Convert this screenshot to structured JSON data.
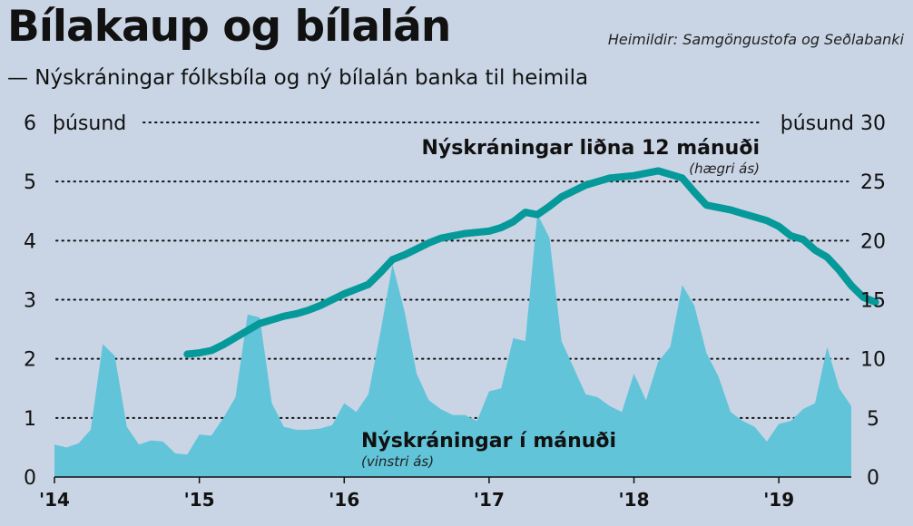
{
  "header": {
    "title": "Bílakaup og bílalán",
    "source": "Heimildir: Samgöngustofa og Seðlabanki",
    "subtitle": "— Nýskráningar fólksbíla og ný bílalán banka til heimila"
  },
  "chart_data": {
    "type": "area+line",
    "left_unit": "þúsund",
    "right_unit": "þúsund",
    "left_axis": {
      "min": 0,
      "max": 6,
      "ticks": [
        0,
        1,
        2,
        3,
        4,
        5,
        6
      ]
    },
    "right_axis": {
      "min": 0,
      "max": 30,
      "ticks": [
        0,
        5,
        10,
        15,
        20,
        25,
        30
      ]
    },
    "x_axis": {
      "start": 2014.0,
      "end": 2019.5,
      "ticks": [
        2014,
        2015,
        2016,
        2017,
        2018,
        2019
      ],
      "tick_labels": [
        "'14",
        "'15",
        "'16",
        "'17",
        "'18",
        "'19"
      ]
    },
    "grid": "dotted",
    "colors": {
      "background": "#c9d5e5",
      "area": "#62c4d9",
      "line": "#05999a"
    },
    "series": [
      {
        "name": "Nýskráningar í mánuði",
        "axis_note": "(vinstri ás)",
        "kind": "area",
        "axis": "left",
        "start": "2014-01",
        "values": [
          0.55,
          0.5,
          0.57,
          0.8,
          2.25,
          2.05,
          0.85,
          0.55,
          0.62,
          0.6,
          0.4,
          0.38,
          0.72,
          0.7,
          1.0,
          1.35,
          2.75,
          2.7,
          1.25,
          0.85,
          0.8,
          0.8,
          0.82,
          0.88,
          1.25,
          1.1,
          1.4,
          2.45,
          3.6,
          2.8,
          1.75,
          1.3,
          1.15,
          1.05,
          1.05,
          0.95,
          1.45,
          1.5,
          2.35,
          2.3,
          4.45,
          4.05,
          2.3,
          1.85,
          1.4,
          1.35,
          1.2,
          1.1,
          1.75,
          1.3,
          1.95,
          2.2,
          3.25,
          2.9,
          2.1,
          1.7,
          1.1,
          0.95,
          0.85,
          0.6,
          0.9,
          0.95,
          1.15,
          1.25,
          2.2,
          1.5,
          1.2
        ]
      },
      {
        "name": "Nýskráningar liðna 12 mánuði",
        "axis_note": "(hægri ás)",
        "kind": "line",
        "axis": "right",
        "start": "2014-12",
        "values": [
          10.4,
          10.5,
          10.7,
          11.2,
          11.8,
          12.4,
          13.0,
          13.3,
          13.6,
          13.8,
          14.1,
          14.5,
          15.0,
          15.5,
          15.9,
          16.3,
          17.3,
          18.4,
          18.8,
          19.3,
          19.8,
          20.2,
          20.4,
          20.6,
          20.7,
          20.8,
          21.1,
          21.6,
          22.4,
          22.2,
          22.9,
          23.7,
          24.2,
          24.7,
          25.0,
          25.3,
          25.4,
          25.5,
          25.7,
          25.9,
          25.6,
          25.3,
          24.1,
          23.0,
          22.8,
          22.6,
          22.3,
          22.0,
          21.7,
          21.2,
          20.4,
          20.1,
          19.2,
          18.6,
          17.5,
          16.2,
          15.2,
          14.8
        ]
      }
    ]
  }
}
